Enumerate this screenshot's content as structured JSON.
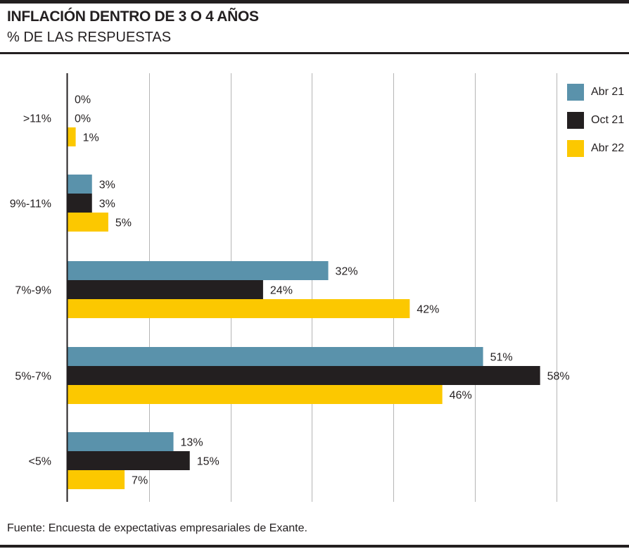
{
  "header": {
    "title": "INFLACIÓN DENTRO DE 3 O 4 AÑOS",
    "subtitle": "% DE LAS RESPUESTAS"
  },
  "footer": {
    "source": "Fuente: Encuesta de expectativas empresariales de Exante."
  },
  "legend": {
    "items": [
      {
        "label": "Abr 21",
        "color": "#5a92ab"
      },
      {
        "label": "Oct 21",
        "color": "#231f20"
      },
      {
        "label": "Abr 22",
        "color": "#fcc800"
      }
    ]
  },
  "chart_data": {
    "type": "bar",
    "orientation": "horizontal",
    "categories": [
      ">11%",
      "9%-11%",
      "7%-9%",
      "5%-7%",
      "<5%"
    ],
    "series": [
      {
        "name": "Abr 21",
        "color": "#5a92ab",
        "values": [
          0,
          3,
          32,
          51,
          13
        ],
        "labels": [
          "0%",
          "3%",
          "32%",
          "51%",
          "13%"
        ]
      },
      {
        "name": "Oct 21",
        "color": "#231f20",
        "values": [
          0,
          3,
          24,
          58,
          15
        ],
        "labels": [
          "0%",
          "3%",
          "24%",
          "58%",
          "15%"
        ]
      },
      {
        "name": "Abr 22",
        "color": "#fcc800",
        "values": [
          1,
          5,
          42,
          46,
          7
        ],
        "labels": [
          "1%",
          "5%",
          "42%",
          "46%",
          "7%"
        ]
      }
    ],
    "xlim": [
      0,
      60
    ],
    "grid": true,
    "legend_position": "top-right",
    "title": "INFLACIÓN DENTRO DE 3 O 4 AÑOS",
    "subtitle": "% DE LAS RESPUESTAS"
  }
}
